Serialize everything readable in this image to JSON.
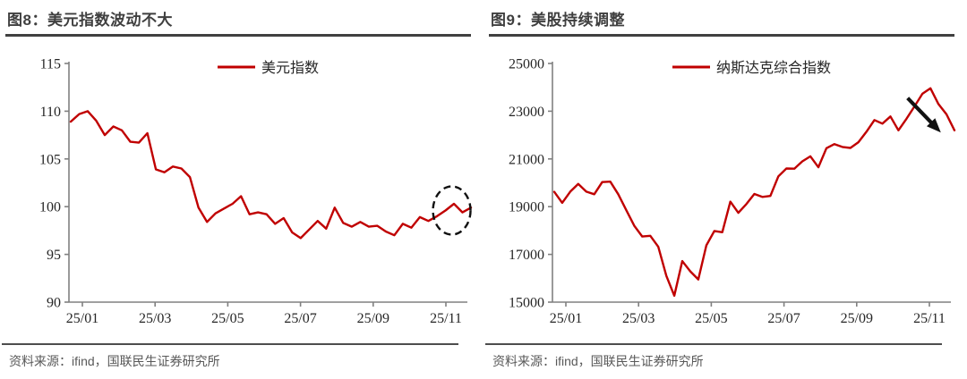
{
  "panels": [
    {
      "title": "图8：美元指数波动不大",
      "source": "资料来源：ifind，国联民生证券研究所"
    },
    {
      "title": "图9：美股持续调整",
      "source": "资料来源：ifind，国联民生证券研究所"
    }
  ],
  "colors": {
    "series_red": "#c00000",
    "title_text": "#3f3f3f",
    "axis_gray": "#808080",
    "annotation_black": "#111111"
  },
  "chart_data": [
    {
      "type": "line",
      "title": "图8：美元指数波动不大",
      "legend": "美元指数",
      "legend_position": "top-center",
      "grid": false,
      "x_tick_labels": [
        "25/01",
        "25/03",
        "25/05",
        "25/07",
        "25/09",
        "25/11"
      ],
      "y_ticks": [
        115,
        110,
        105,
        100,
        95,
        90
      ],
      "ylim": [
        90,
        115
      ],
      "line_color": "#c00000",
      "values": [
        108.9,
        109.7,
        110.0,
        109.0,
        107.5,
        108.4,
        108.0,
        106.8,
        106.7,
        107.7,
        103.9,
        103.6,
        104.2,
        104.0,
        103.1,
        99.9,
        98.4,
        99.3,
        99.8,
        100.3,
        101.1,
        99.2,
        99.4,
        99.2,
        98.2,
        98.8,
        97.3,
        96.7,
        97.6,
        98.5,
        97.7,
        99.9,
        98.3,
        97.9,
        98.4,
        97.9,
        98.0,
        97.4,
        97.0,
        98.2,
        97.8,
        98.9,
        98.5,
        99.0,
        99.6,
        100.3,
        99.4,
        99.9
      ],
      "annotation": {
        "shape": "dashed-ellipse",
        "description": "dashed circle highlighting the recent flat stretch of the USD index near 100",
        "x_frac": 0.952,
        "center_value": 99.6,
        "rx": 21,
        "ry": 27
      }
    },
    {
      "type": "line",
      "title": "图9：美股持续调整",
      "legend": "纳斯达克综合指数",
      "legend_position": "top-center",
      "grid": false,
      "x_tick_labels": [
        "25/01",
        "25/03",
        "25/05",
        "25/07",
        "25/09",
        "25/11"
      ],
      "y_ticks": [
        25000,
        23000,
        21000,
        19000,
        17000,
        15000
      ],
      "ylim": [
        15000,
        25000
      ],
      "line_color": "#c00000",
      "values": [
        19620,
        19160,
        19630,
        19950,
        19630,
        19520,
        20030,
        20050,
        19520,
        18850,
        18200,
        17750,
        17780,
        17320,
        16100,
        15270,
        16720,
        16290,
        15950,
        17380,
        17980,
        17930,
        19210,
        18740,
        19110,
        19530,
        19410,
        19450,
        20270,
        20600,
        20590,
        20900,
        21110,
        20650,
        21450,
        21620,
        21500,
        21460,
        21700,
        22140,
        22630,
        22480,
        22780,
        22200,
        22680,
        23200,
        23730,
        23960,
        23300,
        22870,
        22200
      ],
      "annotation": {
        "shape": "arrow",
        "description": "black arrow pointing down-right at the recent Nasdaq pullback",
        "x1_frac": 0.883,
        "value1": 23550,
        "x2_frac": 0.952,
        "value2": 22350
      }
    }
  ]
}
